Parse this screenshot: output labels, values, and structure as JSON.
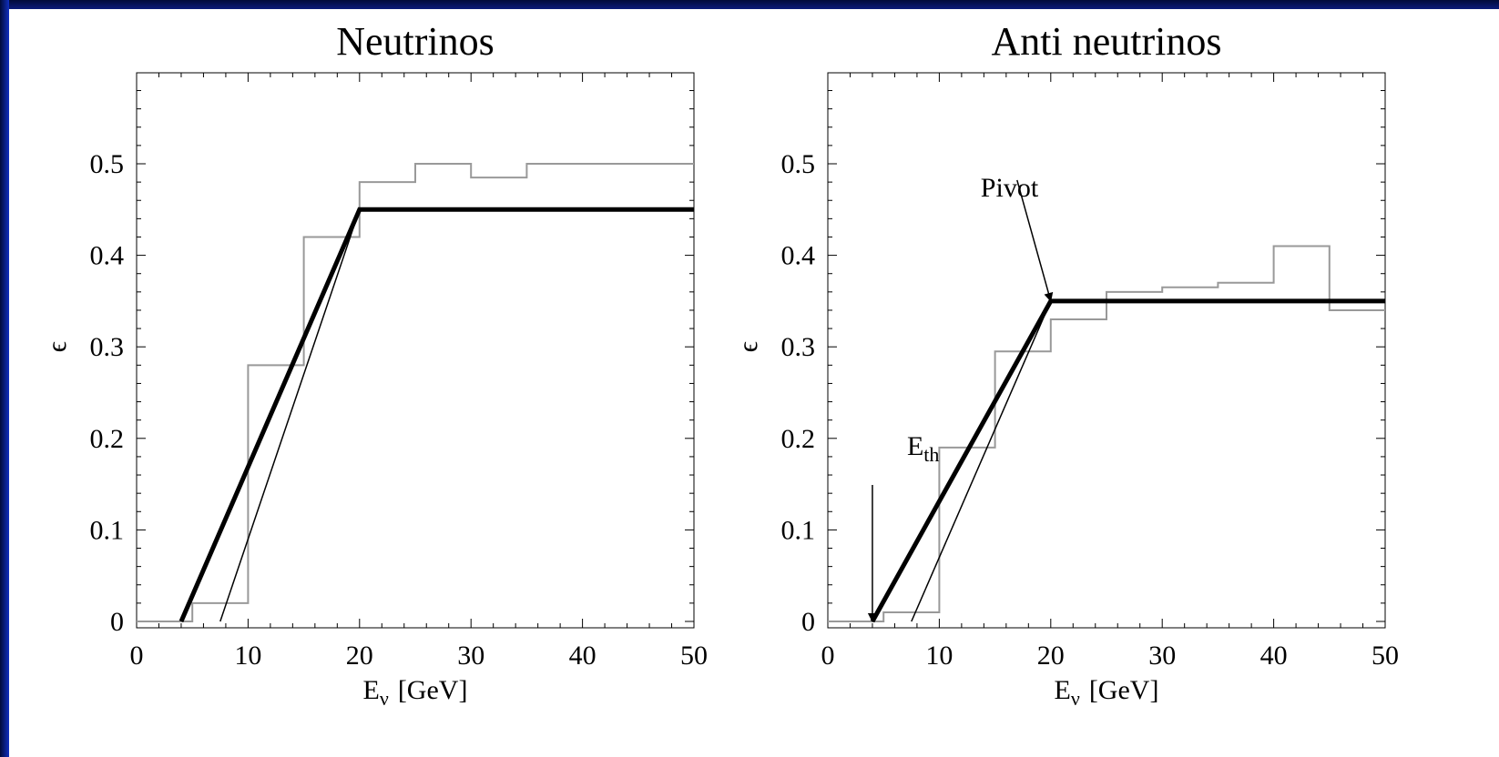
{
  "colors": {
    "frame": "#0a1a7a",
    "step_histogram": "#999999",
    "fit_line": "#000000"
  },
  "chart_data": [
    {
      "type": "line",
      "title": "Neutrinos",
      "xlabel": "E",
      "xlabel_sub": "ν",
      "xlabel_unit": "[GeV]",
      "ylabel": "ϵ",
      "xlim": [
        0,
        50
      ],
      "ylim": [
        -0.01,
        0.6
      ],
      "x_ticks": [
        0,
        10,
        20,
        30,
        40,
        50
      ],
      "y_ticks": [
        0,
        0.1,
        0.2,
        0.3,
        0.4,
        0.5
      ],
      "y_tick_labels": [
        "0",
        "0.1",
        "0.2",
        "0.3",
        "0.4",
        "0.5"
      ],
      "series": [
        {
          "style": "step",
          "bins": [
            [
              0,
              4,
              0
            ],
            [
              4,
              5,
              0
            ],
            [
              5,
              10,
              0.02
            ],
            [
              10,
              15,
              0.28
            ],
            [
              15,
              20,
              0.42
            ],
            [
              20,
              25,
              0.48
            ],
            [
              25,
              30,
              0.5
            ],
            [
              30,
              35,
              0.485
            ],
            [
              35,
              50,
              0.5
            ]
          ]
        },
        {
          "style": "bold",
          "points": [
            [
              4,
              0
            ],
            [
              20,
              0.45
            ],
            [
              50,
              0.45
            ]
          ]
        },
        {
          "style": "thin",
          "points": [
            [
              7.5,
              0
            ],
            [
              20,
              0.45
            ]
          ]
        }
      ],
      "annotations": []
    },
    {
      "type": "line",
      "title": "Anti neutrinos",
      "xlabel": "E",
      "xlabel_sub": "ν",
      "xlabel_unit": "[GeV]",
      "ylabel": "ϵ",
      "xlim": [
        0,
        50
      ],
      "ylim": [
        -0.01,
        0.6
      ],
      "x_ticks": [
        0,
        10,
        20,
        30,
        40,
        50
      ],
      "y_ticks": [
        0,
        0.1,
        0.2,
        0.3,
        0.4,
        0.5
      ],
      "y_tick_labels": [
        "0",
        "0.1",
        "0.2",
        "0.3",
        "0.4",
        "0.5"
      ],
      "series": [
        {
          "style": "step",
          "bins": [
            [
              0,
              4,
              0
            ],
            [
              4,
              5,
              0
            ],
            [
              5,
              10,
              0.01
            ],
            [
              10,
              15,
              0.19
            ],
            [
              15,
              20,
              0.295
            ],
            [
              20,
              25,
              0.33
            ],
            [
              25,
              30,
              0.36
            ],
            [
              30,
              35,
              0.365
            ],
            [
              35,
              40,
              0.37
            ],
            [
              40,
              45,
              0.41
            ],
            [
              45,
              50,
              0.34
            ]
          ]
        },
        {
          "style": "bold",
          "points": [
            [
              4,
              0
            ],
            [
              20,
              0.35
            ],
            [
              50,
              0.35
            ]
          ]
        },
        {
          "style": "thin",
          "points": [
            [
              7.5,
              0
            ],
            [
              20,
              0.35
            ]
          ]
        }
      ],
      "annotations": [
        {
          "text": "Pivot",
          "sub": "",
          "at": [
            20,
            0.35
          ]
        },
        {
          "text": "E",
          "sub": "th",
          "at": [
            4,
            0
          ]
        }
      ]
    }
  ]
}
